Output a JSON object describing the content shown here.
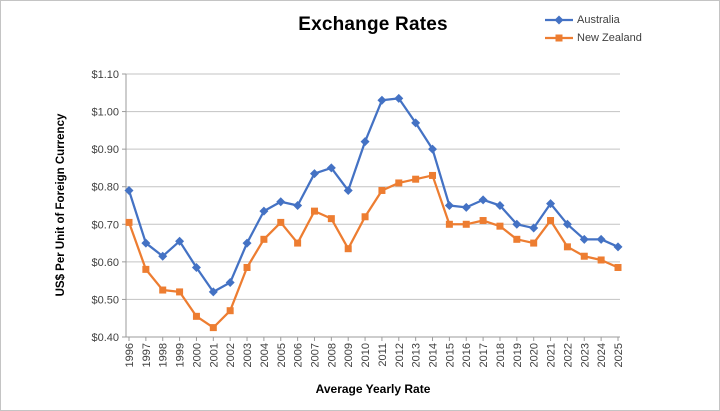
{
  "chart_data": {
    "type": "line",
    "title": "Exchange Rates",
    "xlabel": "Average Yearly Rate",
    "ylabel": "US$ Per Unit of Foreign Currency",
    "ylim": [
      0.4,
      1.1
    ],
    "ytick_step": 0.1,
    "ytick_labels": [
      "$0.40",
      "$0.50",
      "$0.60",
      "$0.70",
      "$0.80",
      "$0.90",
      "$1.00",
      "$1.10"
    ],
    "grid": true,
    "legend_position": "top-right",
    "categories": [
      "1996",
      "1997",
      "1998",
      "1999",
      "2000",
      "2001",
      "2002",
      "2003",
      "2004",
      "2005",
      "2006",
      "2007",
      "2008",
      "2009",
      "2010",
      "2011",
      "2012",
      "2013",
      "2014",
      "2015",
      "2016",
      "2017",
      "2018",
      "2019",
      "2020",
      "2021",
      "2022",
      "2023",
      "2024",
      "2025"
    ],
    "series": [
      {
        "name": "Australia",
        "color": "#4472C4",
        "marker": "diamond",
        "values": [
          0.79,
          0.65,
          0.615,
          0.655,
          0.585,
          0.52,
          0.545,
          0.65,
          0.735,
          0.76,
          0.75,
          0.835,
          0.85,
          0.79,
          0.92,
          1.03,
          1.035,
          0.97,
          0.9,
          0.75,
          0.745,
          0.765,
          0.75,
          0.7,
          0.69,
          0.755,
          0.7,
          0.66,
          0.66,
          0.64
        ]
      },
      {
        "name": "New Zealand",
        "color": "#ED7D31",
        "marker": "square",
        "values": [
          0.705,
          0.58,
          0.525,
          0.52,
          0.455,
          0.425,
          0.47,
          0.585,
          0.66,
          0.705,
          0.65,
          0.735,
          0.715,
          0.635,
          0.72,
          0.79,
          0.81,
          0.82,
          0.83,
          0.7,
          0.7,
          0.71,
          0.695,
          0.66,
          0.65,
          0.71,
          0.64,
          0.615,
          0.605,
          0.585
        ]
      }
    ],
    "gridline_color": "#c3c3c3",
    "axis_color": "#9b9b9b",
    "tick_label_color": "#404040"
  }
}
